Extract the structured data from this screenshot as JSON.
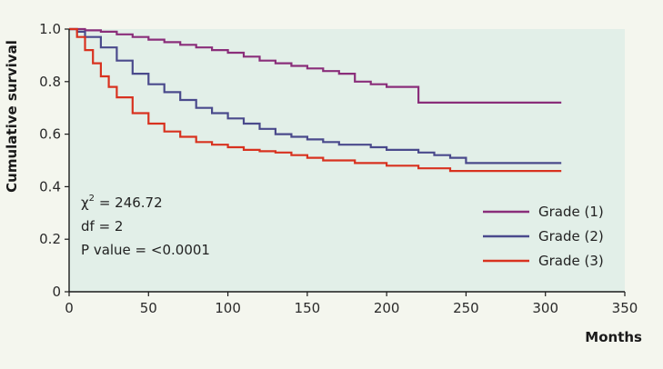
{
  "chart_data": {
    "type": "line",
    "title": "",
    "xlabel": "Months",
    "ylabel": "Cumulative survival",
    "xlim": [
      0,
      350
    ],
    "ylim": [
      0,
      1.0
    ],
    "xticks": [
      "0",
      "50",
      "100",
      "150",
      "200",
      "250",
      "300",
      "350"
    ],
    "yticks": [
      "0",
      "0.2",
      "0.4",
      "0.6",
      "0.8",
      "1.0"
    ],
    "grid": false,
    "legend_position": "bottom-right",
    "series": [
      {
        "name": "Grade (1)",
        "color": "#8a2e7a",
        "x": [
          0,
          10,
          20,
          30,
          40,
          50,
          60,
          70,
          80,
          90,
          100,
          110,
          120,
          130,
          140,
          150,
          160,
          170,
          180,
          190,
          200,
          210,
          220,
          230,
          240,
          250,
          260,
          270,
          280,
          290,
          300,
          310
        ],
        "y": [
          1.0,
          0.995,
          0.99,
          0.98,
          0.97,
          0.96,
          0.95,
          0.94,
          0.93,
          0.92,
          0.91,
          0.895,
          0.88,
          0.87,
          0.86,
          0.85,
          0.84,
          0.83,
          0.8,
          0.79,
          0.78,
          0.78,
          0.72,
          0.72,
          0.72,
          0.72,
          0.72,
          0.72,
          0.72,
          0.72,
          0.72,
          0.72
        ]
      },
      {
        "name": "Grade (2)",
        "color": "#4a4a8c",
        "x": [
          0,
          5,
          10,
          20,
          30,
          40,
          50,
          60,
          70,
          80,
          90,
          100,
          110,
          120,
          130,
          140,
          150,
          160,
          170,
          180,
          190,
          200,
          210,
          220,
          230,
          240,
          250,
          260,
          270,
          280,
          290,
          300,
          310
        ],
        "y": [
          1.0,
          0.99,
          0.97,
          0.93,
          0.88,
          0.83,
          0.79,
          0.76,
          0.73,
          0.7,
          0.68,
          0.66,
          0.64,
          0.62,
          0.6,
          0.59,
          0.58,
          0.57,
          0.56,
          0.56,
          0.55,
          0.54,
          0.54,
          0.53,
          0.52,
          0.51,
          0.49,
          0.49,
          0.49,
          0.49,
          0.49,
          0.49,
          0.49
        ]
      },
      {
        "name": "Grade (3)",
        "color": "#d8321f",
        "x": [
          0,
          5,
          10,
          15,
          20,
          25,
          30,
          40,
          50,
          60,
          70,
          80,
          90,
          100,
          110,
          120,
          130,
          140,
          150,
          160,
          170,
          180,
          190,
          200,
          210,
          220,
          230,
          240,
          250,
          260,
          270,
          280,
          290,
          300,
          310
        ],
        "y": [
          1.0,
          0.97,
          0.92,
          0.87,
          0.82,
          0.78,
          0.74,
          0.68,
          0.64,
          0.61,
          0.59,
          0.57,
          0.56,
          0.55,
          0.54,
          0.535,
          0.53,
          0.52,
          0.51,
          0.5,
          0.5,
          0.49,
          0.49,
          0.48,
          0.48,
          0.47,
          0.47,
          0.46,
          0.46,
          0.46,
          0.46,
          0.46,
          0.46,
          0.46,
          0.46
        ]
      }
    ],
    "annotations": {
      "chi_symbol": "χ",
      "chi_exponent": "2",
      "chi_value": " = 246.72",
      "df": "df = 2",
      "p_value": "P value = <0.0001"
    }
  }
}
